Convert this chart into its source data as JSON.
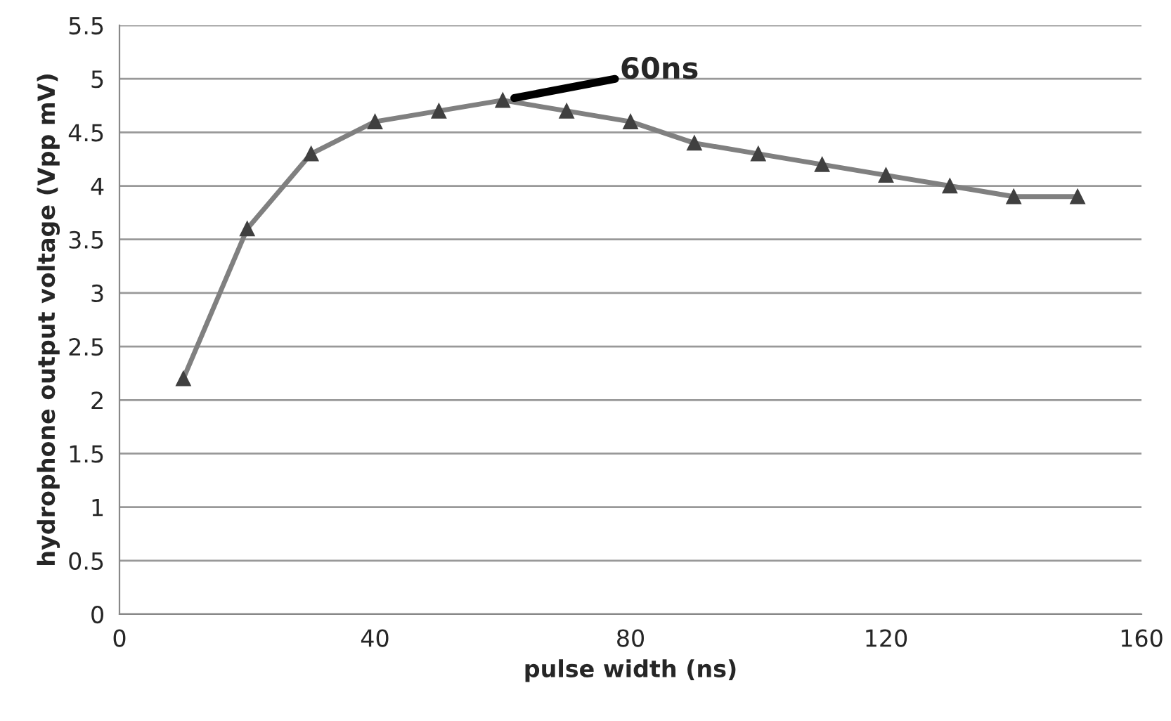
{
  "chart_data": {
    "type": "line",
    "xlabel": "pulse width (ns)",
    "ylabel": "hydrophone output voltage (Vpp mV)",
    "x": [
      10,
      20,
      30,
      40,
      50,
      60,
      70,
      80,
      90,
      100,
      110,
      120,
      130,
      140,
      150
    ],
    "series": [
      {
        "color": "#808080",
        "values": [
          2.2,
          3.6,
          4.3,
          4.6,
          4.7,
          4.8,
          4.7,
          4.6,
          4.4,
          4.3,
          4.2,
          4.1,
          4.0,
          3.9,
          3.9
        ]
      }
    ],
    "marker": "triangle",
    "line_style": "solid",
    "xlim": [
      0,
      160
    ],
    "xticks": [
      0,
      40,
      80,
      120,
      160
    ],
    "ylim": [
      0,
      5.5
    ],
    "yticks": [
      0,
      0.5,
      1,
      1.5,
      2,
      2.5,
      3,
      3.5,
      4,
      4.5,
      5,
      5.5
    ],
    "grid": "y",
    "annotations": [
      {
        "text": "60ns",
        "x": 60,
        "y": 4.8
      }
    ]
  }
}
